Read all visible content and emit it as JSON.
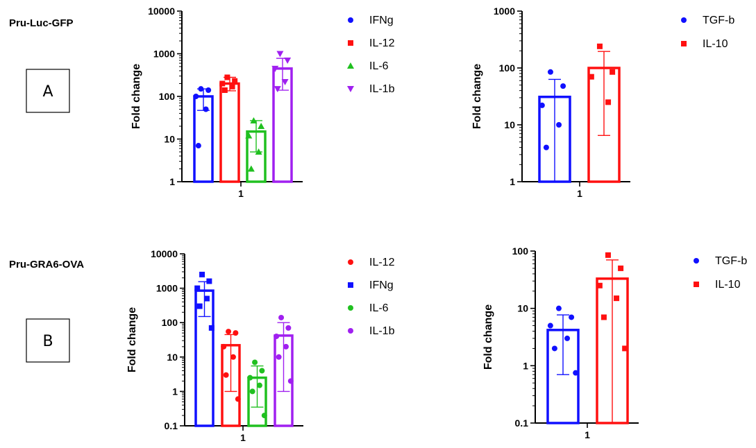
{
  "panels": [
    {
      "label": "Pru-Luc-GFP",
      "box_letter": "A"
    },
    {
      "label": "Pru-GRA6-OVA",
      "box_letter": "B"
    }
  ],
  "chart_data": [
    {
      "type": "bar",
      "log_scale": true,
      "ylabel": "Fold change",
      "ylim": [
        1,
        10000
      ],
      "yticks": [
        "1",
        "10",
        "100",
        "1000",
        "10000"
      ],
      "xlabel_tick": "1",
      "legend_position": "right",
      "series": [
        {
          "name": "IFNg",
          "marker": "circle",
          "color": "#1010ff",
          "mean": 100,
          "err_low": 47,
          "err_high": 150,
          "points": [
            150,
            140,
            100,
            50,
            7
          ]
        },
        {
          "name": "IL-12",
          "marker": "square",
          "color": "#ff1010",
          "mean": 200,
          "err_low": 135,
          "err_high": 280,
          "points": [
            280,
            230,
            200,
            170,
            140
          ]
        },
        {
          "name": "IL-6",
          "marker": "triangle-up",
          "color": "#20c020",
          "mean": 15,
          "err_low": 5,
          "err_high": 27,
          "points": [
            27,
            20,
            12,
            5,
            2
          ]
        },
        {
          "name": "IL-1b",
          "marker": "triangle-down",
          "color": "#a020f0",
          "mean": 450,
          "err_low": 140,
          "err_high": 780,
          "points": [
            1000,
            700,
            450,
            220,
            150
          ]
        }
      ]
    },
    {
      "type": "bar",
      "log_scale": true,
      "ylabel": "Fold change",
      "ylim": [
        1,
        1000
      ],
      "yticks": [
        "1",
        "10",
        "100",
        "1000"
      ],
      "xlabel_tick": "1",
      "legend_position": "right",
      "series": [
        {
          "name": "TGF-b",
          "marker": "circle",
          "color": "#1010ff",
          "mean": 31,
          "err_low": 1,
          "err_high": 63,
          "points": [
            85,
            48,
            22,
            10,
            4
          ]
        },
        {
          "name": "IL-10",
          "marker": "square",
          "color": "#ff1010",
          "mean": 100,
          "err_low": 6.5,
          "err_high": 195,
          "points": [
            240,
            85,
            70,
            25
          ]
        }
      ]
    },
    {
      "type": "bar",
      "log_scale": true,
      "ylabel": "Fold change",
      "ylim": [
        0.1,
        10000
      ],
      "yticks": [
        "0.1",
        "1",
        "10",
        "100",
        "1000",
        "10000"
      ],
      "xlabel_tick": "1",
      "legend_position": "right",
      "series": [
        {
          "name": "IFNg",
          "marker": "square",
          "color": "#1010ff",
          "mean": 850,
          "err_low": 150,
          "err_high": 1550,
          "points": [
            2500,
            1600,
            1000,
            500,
            300,
            70
          ]
        },
        {
          "name": "IL-12",
          "marker": "circle",
          "color": "#ff1010",
          "mean": 22,
          "err_low": 1,
          "err_high": 45,
          "points": [
            55,
            50,
            20,
            10,
            3,
            0.6
          ]
        },
        {
          "name": "IL-6",
          "marker": "circle",
          "color": "#20c020",
          "mean": 2.5,
          "err_low": 0.35,
          "err_high": 5.5,
          "points": [
            7,
            4,
            2.5,
            1.5,
            1,
            0.2
          ]
        },
        {
          "name": "IL-1b",
          "marker": "circle",
          "color": "#a020f0",
          "mean": 42,
          "err_low": 1,
          "err_high": 100,
          "points": [
            140,
            70,
            40,
            20,
            10,
            2
          ]
        }
      ],
      "legend_order": [
        "IL-12",
        "IFNg",
        "IL-6",
        "IL-1b"
      ]
    },
    {
      "type": "bar",
      "log_scale": true,
      "ylabel": "Fold change",
      "ylim": [
        0.1,
        100
      ],
      "yticks": [
        "0.1",
        "1",
        "10",
        "100"
      ],
      "xlabel_tick": "1",
      "legend_position": "right",
      "series": [
        {
          "name": "TGF-b",
          "marker": "circle",
          "color": "#1010ff",
          "mean": 4.2,
          "err_low": 0.7,
          "err_high": 7.7,
          "points": [
            10,
            7,
            5,
            3,
            2,
            0.75
          ]
        },
        {
          "name": "IL-10",
          "marker": "square",
          "color": "#ff1010",
          "mean": 33,
          "err_low": 0.1,
          "err_high": 70,
          "points": [
            85,
            50,
            25,
            15,
            7,
            2
          ]
        }
      ]
    }
  ]
}
